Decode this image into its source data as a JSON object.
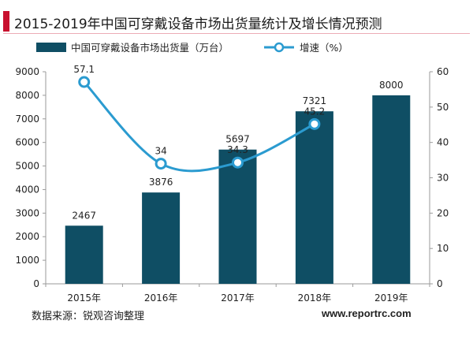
{
  "title": "2015-2019年中国可穿戴设备市场出货量统计及增长情况预测",
  "source": "数据来源：锐观咨询整理",
  "website": "www.reportrc.com",
  "colors": {
    "bar": "#0f4e64",
    "line": "#2b9bd0",
    "accent": "#c8102e"
  },
  "chart_data": {
    "type": "bar",
    "categories": [
      "2015年",
      "2016年",
      "2017年",
      "2018年",
      "2019年"
    ],
    "legend_position": "top",
    "grid": false,
    "series": [
      {
        "name": "中国可穿戴设备市场出货量（万台）",
        "type": "bar",
        "axis": "left",
        "values": [
          2467,
          3876,
          5697,
          7321,
          8000
        ],
        "labels": [
          "2467",
          "3876",
          "5697",
          "7321",
          "8000"
        ]
      },
      {
        "name": "增速（%）",
        "type": "line",
        "axis": "right",
        "values": [
          57.1,
          34,
          34.3,
          45.2,
          null
        ],
        "labels": [
          "57.1",
          "34",
          "34.3",
          "45.2",
          ""
        ]
      }
    ],
    "y_left": {
      "min": 0,
      "max": 9000,
      "ticks": [
        "0",
        "1000",
        "2000",
        "3000",
        "4000",
        "5000",
        "6000",
        "7000",
        "8000",
        "9000"
      ]
    },
    "y_right": {
      "min": 0,
      "max": 60,
      "ticks": [
        "0",
        "10",
        "20",
        "30",
        "40",
        "50",
        "60"
      ]
    }
  }
}
